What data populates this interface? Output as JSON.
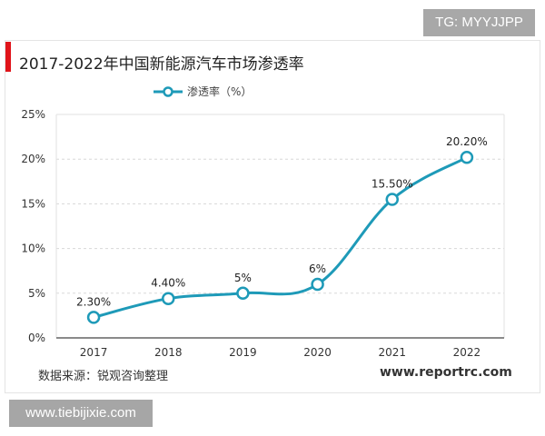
{
  "watermarks": {
    "top_right": "TG: MYYJJPP",
    "bottom_left": "www.tiebijixie.com"
  },
  "header": {
    "title": "2017-2022年中国新能源汽车市场渗透率",
    "accent_color": "#e0141a"
  },
  "legend": {
    "label": "渗透率（%）",
    "color": "#1e9ab8"
  },
  "footer": {
    "source": "数据来源：锐观咨询整理",
    "site": "www.reportrc.com"
  },
  "chart_data": {
    "type": "line",
    "title": "2017-2022年中国新能源汽车市场渗透率",
    "xlabel": "",
    "ylabel": "",
    "categories": [
      "2017",
      "2018",
      "2019",
      "2020",
      "2021",
      "2022"
    ],
    "series": [
      {
        "name": "渗透率（%）",
        "values": [
          2.3,
          4.4,
          5,
          6,
          15.5,
          20.2
        ],
        "labels": [
          "2.30%",
          "4.40%",
          "5%",
          "6%",
          "15.50%",
          "20.20%"
        ],
        "color": "#1e9ab8"
      }
    ],
    "ylim": [
      0,
      25
    ],
    "yticks": [
      "0%",
      "5%",
      "10%",
      "15%",
      "20%",
      "25%"
    ],
    "grid": "horizontal dashed",
    "legend_position": "top"
  }
}
